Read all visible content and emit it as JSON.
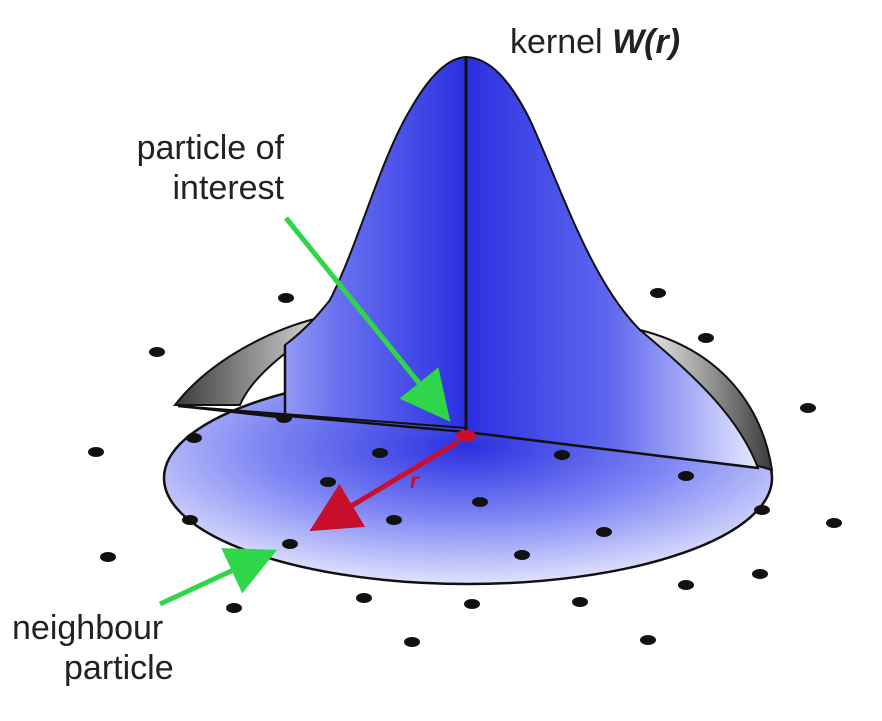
{
  "title": {
    "prefix": "kernel ",
    "symbol": "W",
    "open": "(",
    "arg": "r",
    "close": ")"
  },
  "labels": {
    "particle_of_interest": [
      "particle of",
      "interest"
    ],
    "neighbour_particle": [
      "neighbour",
      "particle"
    ],
    "radius_symbol": "r"
  },
  "colors": {
    "kernel_blue": "#2a2fe0",
    "kernel_light": "#dfe3ff",
    "base_gray": "#8a8a8a",
    "arrow_green": "#2fd64a",
    "radius_red": "#c8102e",
    "particle_black": "#111111"
  },
  "icons": {
    "particles": "particle-dot"
  }
}
